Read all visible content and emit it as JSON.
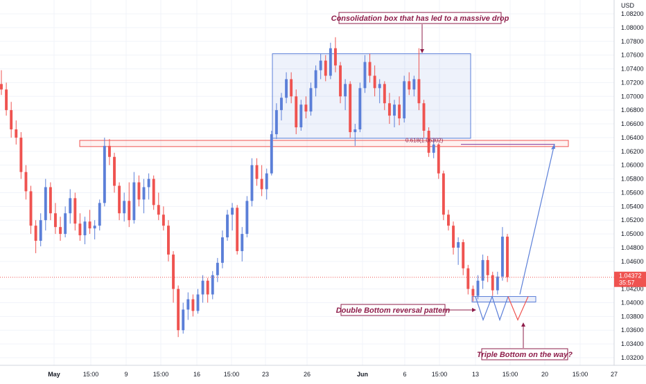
{
  "chart_data": {
    "type": "candlestick",
    "title": "",
    "currency": "USD",
    "y_ticks": [
      "1.08200",
      "1.08000",
      "1.07800",
      "1.07600",
      "1.07400",
      "1.07200",
      "1.07000",
      "1.06800",
      "1.06600",
      "1.06400",
      "1.06200",
      "1.06000",
      "1.05800",
      "1.05600",
      "1.05400",
      "1.05200",
      "1.05000",
      "1.04800",
      "1.04600",
      "1.04200",
      "1.04000",
      "1.03800",
      "1.03600",
      "1.03400",
      "1.03200"
    ],
    "ylim": [
      1.0316,
      1.0839
    ],
    "x_ticks": [
      "May",
      "15:00",
      "9",
      "15:00",
      "16",
      "15:00",
      "23",
      "26",
      "Jun",
      "6",
      "15:00",
      "13",
      "15:00",
      "20",
      "15:00",
      "27"
    ],
    "current_price": {
      "value": "1.04372",
      "countdown": "35:57"
    },
    "colors": {
      "up": "#5b7fd8",
      "down": "#ef5350",
      "pattern_red": "#ef5350",
      "pattern_blue": "#5b7fd8",
      "annotation_text": "#8e1d4a",
      "grid": "#f0f3fa"
    },
    "annotations": {
      "consolidation": "Consolidation box that has led to a massive drop",
      "double_bottom": "Double Bottom reversal pattern",
      "triple_bottom": "Triple Bottom on the way?",
      "fib_level": "0.618(1.06302)"
    },
    "levels": {
      "consolidation_box": [
        1.0639,
        1.0762
      ],
      "support_zone": [
        1.0627,
        1.0636
      ],
      "bottom_box": [
        1.0401,
        1.0409
      ],
      "fib_price": 1.06302,
      "projection_target": 1.0631
    },
    "series": [
      {
        "o": 1.0718,
        "h": 1.0738,
        "l": 1.0702,
        "c": 1.071
      },
      {
        "o": 1.071,
        "h": 1.072,
        "l": 1.0672,
        "c": 1.068
      },
      {
        "o": 1.068,
        "h": 1.0692,
        "l": 1.064,
        "c": 1.0652
      },
      {
        "o": 1.0652,
        "h": 1.0665,
        "l": 1.063,
        "c": 1.064
      },
      {
        "o": 1.064,
        "h": 1.0648,
        "l": 1.058,
        "c": 1.059
      },
      {
        "o": 1.059,
        "h": 1.06,
        "l": 1.055,
        "c": 1.0562
      },
      {
        "o": 1.0562,
        "h": 1.057,
        "l": 1.05,
        "c": 1.0512
      },
      {
        "o": 1.0512,
        "h": 1.052,
        "l": 1.0472,
        "c": 1.049
      },
      {
        "o": 1.049,
        "h": 1.053,
        "l": 1.0482,
        "c": 1.052
      },
      {
        "o": 1.052,
        "h": 1.058,
        "l": 1.0505,
        "c": 1.0568
      },
      {
        "o": 1.0568,
        "h": 1.0575,
        "l": 1.052,
        "c": 1.053
      },
      {
        "o": 1.053,
        "h": 1.0545,
        "l": 1.05,
        "c": 1.051
      },
      {
        "o": 1.051,
        "h": 1.0525,
        "l": 1.049,
        "c": 1.05
      },
      {
        "o": 1.05,
        "h": 1.054,
        "l": 1.0495,
        "c": 1.053
      },
      {
        "o": 1.053,
        "h": 1.0565,
        "l": 1.0515,
        "c": 1.0552
      },
      {
        "o": 1.0552,
        "h": 1.056,
        "l": 1.0505,
        "c": 1.0515
      },
      {
        "o": 1.0515,
        "h": 1.053,
        "l": 1.049,
        "c": 1.0498
      },
      {
        "o": 1.0498,
        "h": 1.0525,
        "l": 1.0485,
        "c": 1.0518
      },
      {
        "o": 1.0518,
        "h": 1.0535,
        "l": 1.05,
        "c": 1.0508
      },
      {
        "o": 1.0508,
        "h": 1.052,
        "l": 1.0492,
        "c": 1.0512
      },
      {
        "o": 1.0512,
        "h": 1.055,
        "l": 1.0505,
        "c": 1.0545
      },
      {
        "o": 1.0545,
        "h": 1.064,
        "l": 1.054,
        "c": 1.0628
      },
      {
        "o": 1.0628,
        "h": 1.0638,
        "l": 1.06,
        "c": 1.0612
      },
      {
        "o": 1.0612,
        "h": 1.0618,
        "l": 1.056,
        "c": 1.057
      },
      {
        "o": 1.057,
        "h": 1.0575,
        "l": 1.052,
        "c": 1.053
      },
      {
        "o": 1.053,
        "h": 1.056,
        "l": 1.0518,
        "c": 1.0548
      },
      {
        "o": 1.0548,
        "h": 1.0575,
        "l": 1.051,
        "c": 1.052
      },
      {
        "o": 1.052,
        "h": 1.059,
        "l": 1.0515,
        "c": 1.0575
      },
      {
        "o": 1.0575,
        "h": 1.0585,
        "l": 1.054,
        "c": 1.055
      },
      {
        "o": 1.055,
        "h": 1.058,
        "l": 1.053,
        "c": 1.0568
      },
      {
        "o": 1.0568,
        "h": 1.0588,
        "l": 1.055,
        "c": 1.058
      },
      {
        "o": 1.058,
        "h": 1.0585,
        "l": 1.0535,
        "c": 1.0542
      },
      {
        "o": 1.0542,
        "h": 1.056,
        "l": 1.052,
        "c": 1.0528
      },
      {
        "o": 1.0528,
        "h": 1.054,
        "l": 1.0505,
        "c": 1.0512
      },
      {
        "o": 1.0512,
        "h": 1.052,
        "l": 1.046,
        "c": 1.047
      },
      {
        "o": 1.047,
        "h": 1.0475,
        "l": 1.04,
        "c": 1.042
      },
      {
        "o": 1.042,
        "h": 1.0425,
        "l": 1.035,
        "c": 1.036
      },
      {
        "o": 1.036,
        "h": 1.04,
        "l": 1.0355,
        "c": 1.039
      },
      {
        "o": 1.039,
        "h": 1.0415,
        "l": 1.0375,
        "c": 1.0405
      },
      {
        "o": 1.0405,
        "h": 1.0412,
        "l": 1.038,
        "c": 1.0388
      },
      {
        "o": 1.0388,
        "h": 1.042,
        "l": 1.0384,
        "c": 1.0412
      },
      {
        "o": 1.0412,
        "h": 1.044,
        "l": 1.04,
        "c": 1.0432
      },
      {
        "o": 1.0432,
        "h": 1.0436,
        "l": 1.04,
        "c": 1.0412
      },
      {
        "o": 1.0412,
        "h": 1.0446,
        "l": 1.0405,
        "c": 1.044
      },
      {
        "o": 1.044,
        "h": 1.0465,
        "l": 1.043,
        "c": 1.0458
      },
      {
        "o": 1.0458,
        "h": 1.0505,
        "l": 1.045,
        "c": 1.0495
      },
      {
        "o": 1.0495,
        "h": 1.0535,
        "l": 1.049,
        "c": 1.0528
      },
      {
        "o": 1.0528,
        "h": 1.0545,
        "l": 1.0505,
        "c": 1.0538
      },
      {
        "o": 1.0538,
        "h": 1.0542,
        "l": 1.047,
        "c": 1.0475
      },
      {
        "o": 1.0475,
        "h": 1.051,
        "l": 1.046,
        "c": 1.05
      },
      {
        "o": 1.05,
        "h": 1.0555,
        "l": 1.0495,
        "c": 1.0548
      },
      {
        "o": 1.0548,
        "h": 1.061,
        "l": 1.054,
        "c": 1.06
      },
      {
        "o": 1.06,
        "h": 1.061,
        "l": 1.057,
        "c": 1.058
      },
      {
        "o": 1.058,
        "h": 1.06,
        "l": 1.0555,
        "c": 1.0565
      },
      {
        "o": 1.0565,
        "h": 1.0595,
        "l": 1.055,
        "c": 1.0588
      },
      {
        "o": 1.0588,
        "h": 1.065,
        "l": 1.0585,
        "c": 1.0645
      },
      {
        "o": 1.0645,
        "h": 1.069,
        "l": 1.0638,
        "c": 1.068
      },
      {
        "o": 1.068,
        "h": 1.0705,
        "l": 1.0665,
        "c": 1.0698
      },
      {
        "o": 1.0698,
        "h": 1.0735,
        "l": 1.069,
        "c": 1.0725
      },
      {
        "o": 1.0725,
        "h": 1.0735,
        "l": 1.069,
        "c": 1.07
      },
      {
        "o": 1.07,
        "h": 1.071,
        "l": 1.0645,
        "c": 1.0655
      },
      {
        "o": 1.0655,
        "h": 1.0695,
        "l": 1.065,
        "c": 1.0688
      },
      {
        "o": 1.0688,
        "h": 1.07,
        "l": 1.0668,
        "c": 1.0678
      },
      {
        "o": 1.0678,
        "h": 1.072,
        "l": 1.0672,
        "c": 1.0712
      },
      {
        "o": 1.0712,
        "h": 1.0745,
        "l": 1.07,
        "c": 1.0738
      },
      {
        "o": 1.0738,
        "h": 1.0762,
        "l": 1.0725,
        "c": 1.0752
      },
      {
        "o": 1.0752,
        "h": 1.076,
        "l": 1.0722,
        "c": 1.073
      },
      {
        "o": 1.073,
        "h": 1.0778,
        "l": 1.0725,
        "c": 1.077
      },
      {
        "o": 1.077,
        "h": 1.0786,
        "l": 1.0735,
        "c": 1.0745
      },
      {
        "o": 1.0745,
        "h": 1.075,
        "l": 1.069,
        "c": 1.07
      },
      {
        "o": 1.07,
        "h": 1.0725,
        "l": 1.068,
        "c": 1.0718
      },
      {
        "o": 1.0718,
        "h": 1.0722,
        "l": 1.064,
        "c": 1.0648
      },
      {
        "o": 1.0648,
        "h": 1.066,
        "l": 1.0628,
        "c": 1.0652
      },
      {
        "o": 1.0652,
        "h": 1.072,
        "l": 1.0648,
        "c": 1.0712
      },
      {
        "o": 1.0712,
        "h": 1.076,
        "l": 1.0705,
        "c": 1.075
      },
      {
        "o": 1.075,
        "h": 1.0762,
        "l": 1.072,
        "c": 1.073
      },
      {
        "o": 1.073,
        "h": 1.0745,
        "l": 1.07,
        "c": 1.0712
      },
      {
        "o": 1.0712,
        "h": 1.0725,
        "l": 1.069,
        "c": 1.0718
      },
      {
        "o": 1.0718,
        "h": 1.0722,
        "l": 1.068,
        "c": 1.069
      },
      {
        "o": 1.069,
        "h": 1.0705,
        "l": 1.066,
        "c": 1.0672
      },
      {
        "o": 1.0672,
        "h": 1.0695,
        "l": 1.0655,
        "c": 1.0688
      },
      {
        "o": 1.0688,
        "h": 1.07,
        "l": 1.0658,
        "c": 1.0668
      },
      {
        "o": 1.0668,
        "h": 1.073,
        "l": 1.0662,
        "c": 1.0722
      },
      {
        "o": 1.0722,
        "h": 1.0735,
        "l": 1.0702,
        "c": 1.071
      },
      {
        "o": 1.071,
        "h": 1.073,
        "l": 1.07,
        "c": 1.0725
      },
      {
        "o": 1.0725,
        "h": 1.077,
        "l": 1.068,
        "c": 1.069
      },
      {
        "o": 1.069,
        "h": 1.0695,
        "l": 1.064,
        "c": 1.065
      },
      {
        "o": 1.065,
        "h": 1.0655,
        "l": 1.0612,
        "c": 1.0618
      },
      {
        "o": 1.0618,
        "h": 1.0638,
        "l": 1.061,
        "c": 1.063
      },
      {
        "o": 1.063,
        "h": 1.0632,
        "l": 1.058,
        "c": 1.0588
      },
      {
        "o": 1.0588,
        "h": 1.0592,
        "l": 1.052,
        "c": 1.0528
      },
      {
        "o": 1.0528,
        "h": 1.0535,
        "l": 1.0505,
        "c": 1.0512
      },
      {
        "o": 1.0512,
        "h": 1.0518,
        "l": 1.047,
        "c": 1.048
      },
      {
        "o": 1.048,
        "h": 1.0495,
        "l": 1.0455,
        "c": 1.0488
      },
      {
        "o": 1.0488,
        "h": 1.0492,
        "l": 1.044,
        "c": 1.045
      },
      {
        "o": 1.045,
        "h": 1.0455,
        "l": 1.0412,
        "c": 1.042
      },
      {
        "o": 1.042,
        "h": 1.0425,
        "l": 1.0402,
        "c": 1.041
      },
      {
        "o": 1.041,
        "h": 1.044,
        "l": 1.0405,
        "c": 1.0432
      },
      {
        "o": 1.0432,
        "h": 1.047,
        "l": 1.042,
        "c": 1.0462
      },
      {
        "o": 1.0462,
        "h": 1.0468,
        "l": 1.043,
        "c": 1.044
      },
      {
        "o": 1.044,
        "h": 1.0445,
        "l": 1.041,
        "c": 1.0418
      },
      {
        "o": 1.0418,
        "h": 1.0445,
        "l": 1.0412,
        "c": 1.0438
      },
      {
        "o": 1.0438,
        "h": 1.051,
        "l": 1.0432,
        "c": 1.0496
      },
      {
        "o": 1.0496,
        "h": 1.05,
        "l": 1.043,
        "c": 1.0437
      }
    ]
  }
}
